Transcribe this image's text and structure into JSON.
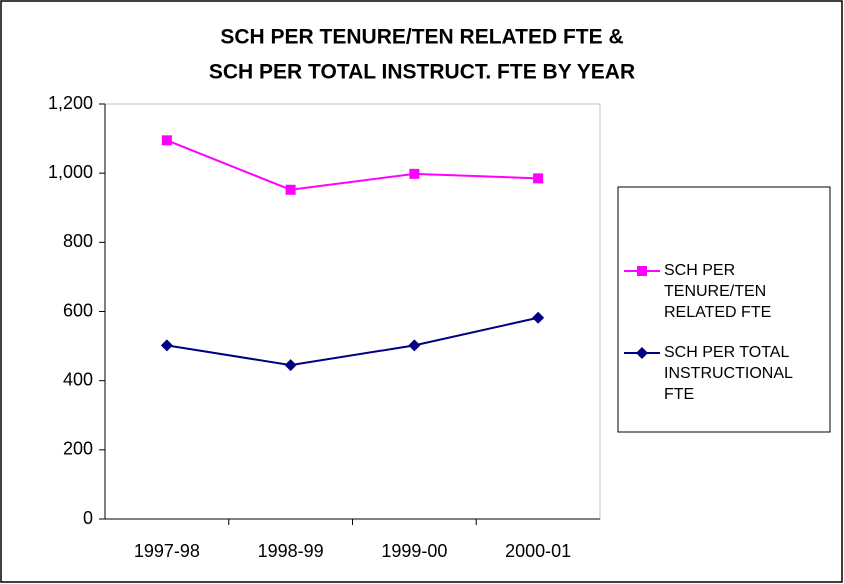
{
  "chart_data": {
    "type": "line",
    "title": [
      "SCH PER TENURE/TEN RELATED FTE &",
      "SCH PER TOTAL INSTRUCT.  FTE BY YEAR"
    ],
    "categories": [
      "1997-98",
      "1998-99",
      "1999-00",
      "2000-01"
    ],
    "series": [
      {
        "name": "SCH PER TENURE/TEN RELATED FTE",
        "color": "#ff00ff",
        "marker": "square",
        "values": [
          1095,
          952,
          998,
          985
        ]
      },
      {
        "name": "SCH PER TOTAL INSTRUCTIONAL FTE",
        "color": "#000080",
        "marker": "diamond",
        "values": [
          502,
          445,
          502,
          582
        ]
      }
    ],
    "ylim": [
      0,
      1200
    ],
    "yticks": [
      0,
      200,
      400,
      600,
      800,
      {
        "value": 1000,
        "label": "1,000"
      },
      {
        "value": 1200,
        "label": "1,200"
      }
    ],
    "legend": "right"
  }
}
